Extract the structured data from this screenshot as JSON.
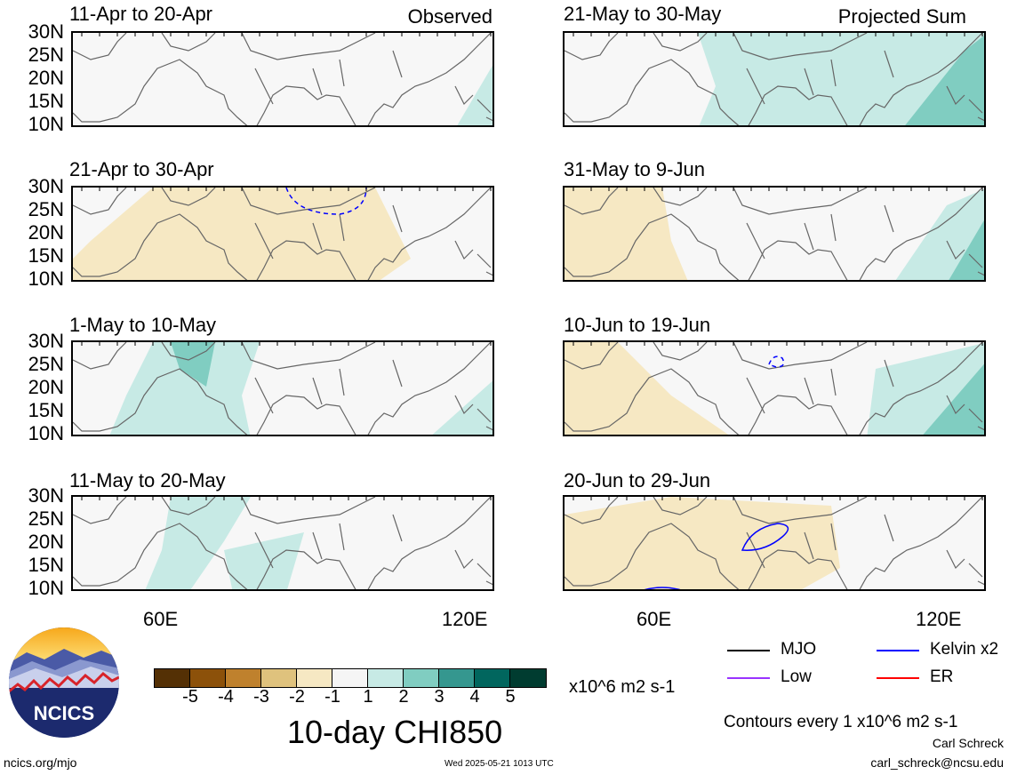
{
  "panels": [
    {
      "period": "11-Apr to 20-Apr",
      "status": "Observed"
    },
    {
      "period": "21-Apr to 30-Apr",
      "status": ""
    },
    {
      "period": "1-May to 10-May",
      "status": ""
    },
    {
      "period": "11-May to 20-May",
      "status": ""
    },
    {
      "period": "21-May to 30-May",
      "status": "Projected Sum"
    },
    {
      "period": "31-May to 9-Jun",
      "status": ""
    },
    {
      "period": "10-Jun to 19-Jun",
      "status": ""
    },
    {
      "period": "20-Jun to 29-Jun",
      "status": ""
    }
  ],
  "lat_labels": [
    "30N",
    "25N",
    "20N",
    "15N",
    "10N"
  ],
  "lon_labels": [
    "60E",
    "120E"
  ],
  "colorbar": {
    "colors": [
      "#543005",
      "#8c510a",
      "#bf812d",
      "#dfc27d",
      "#f6e8c3",
      "#f5f5f5",
      "#c7eae5",
      "#80cdc1",
      "#35978f",
      "#01665e",
      "#003c30"
    ],
    "ticks": [
      "-5",
      "-4",
      "-3",
      "-2",
      "-1",
      "1",
      "2",
      "3",
      "4",
      "5"
    ],
    "units": "x10^6 m2 s-1"
  },
  "title": "10-day CHI850",
  "legend": [
    {
      "label": "MJO",
      "color": "#000000"
    },
    {
      "label": "Kelvin x2",
      "color": "#0000ff"
    },
    {
      "label": "Low",
      "color": "#9933ff"
    },
    {
      "label": "ER",
      "color": "#ff0000"
    }
  ],
  "contour_note": "Contours every 1 x10^6 m2 s-1",
  "author": "Carl Schreck",
  "email": "carl_schreck@ncsu.edu",
  "site": "ncics.org/mjo",
  "timestamp": "Wed 2025-05-21 1013 UTC",
  "logo_text": "NCICS"
}
